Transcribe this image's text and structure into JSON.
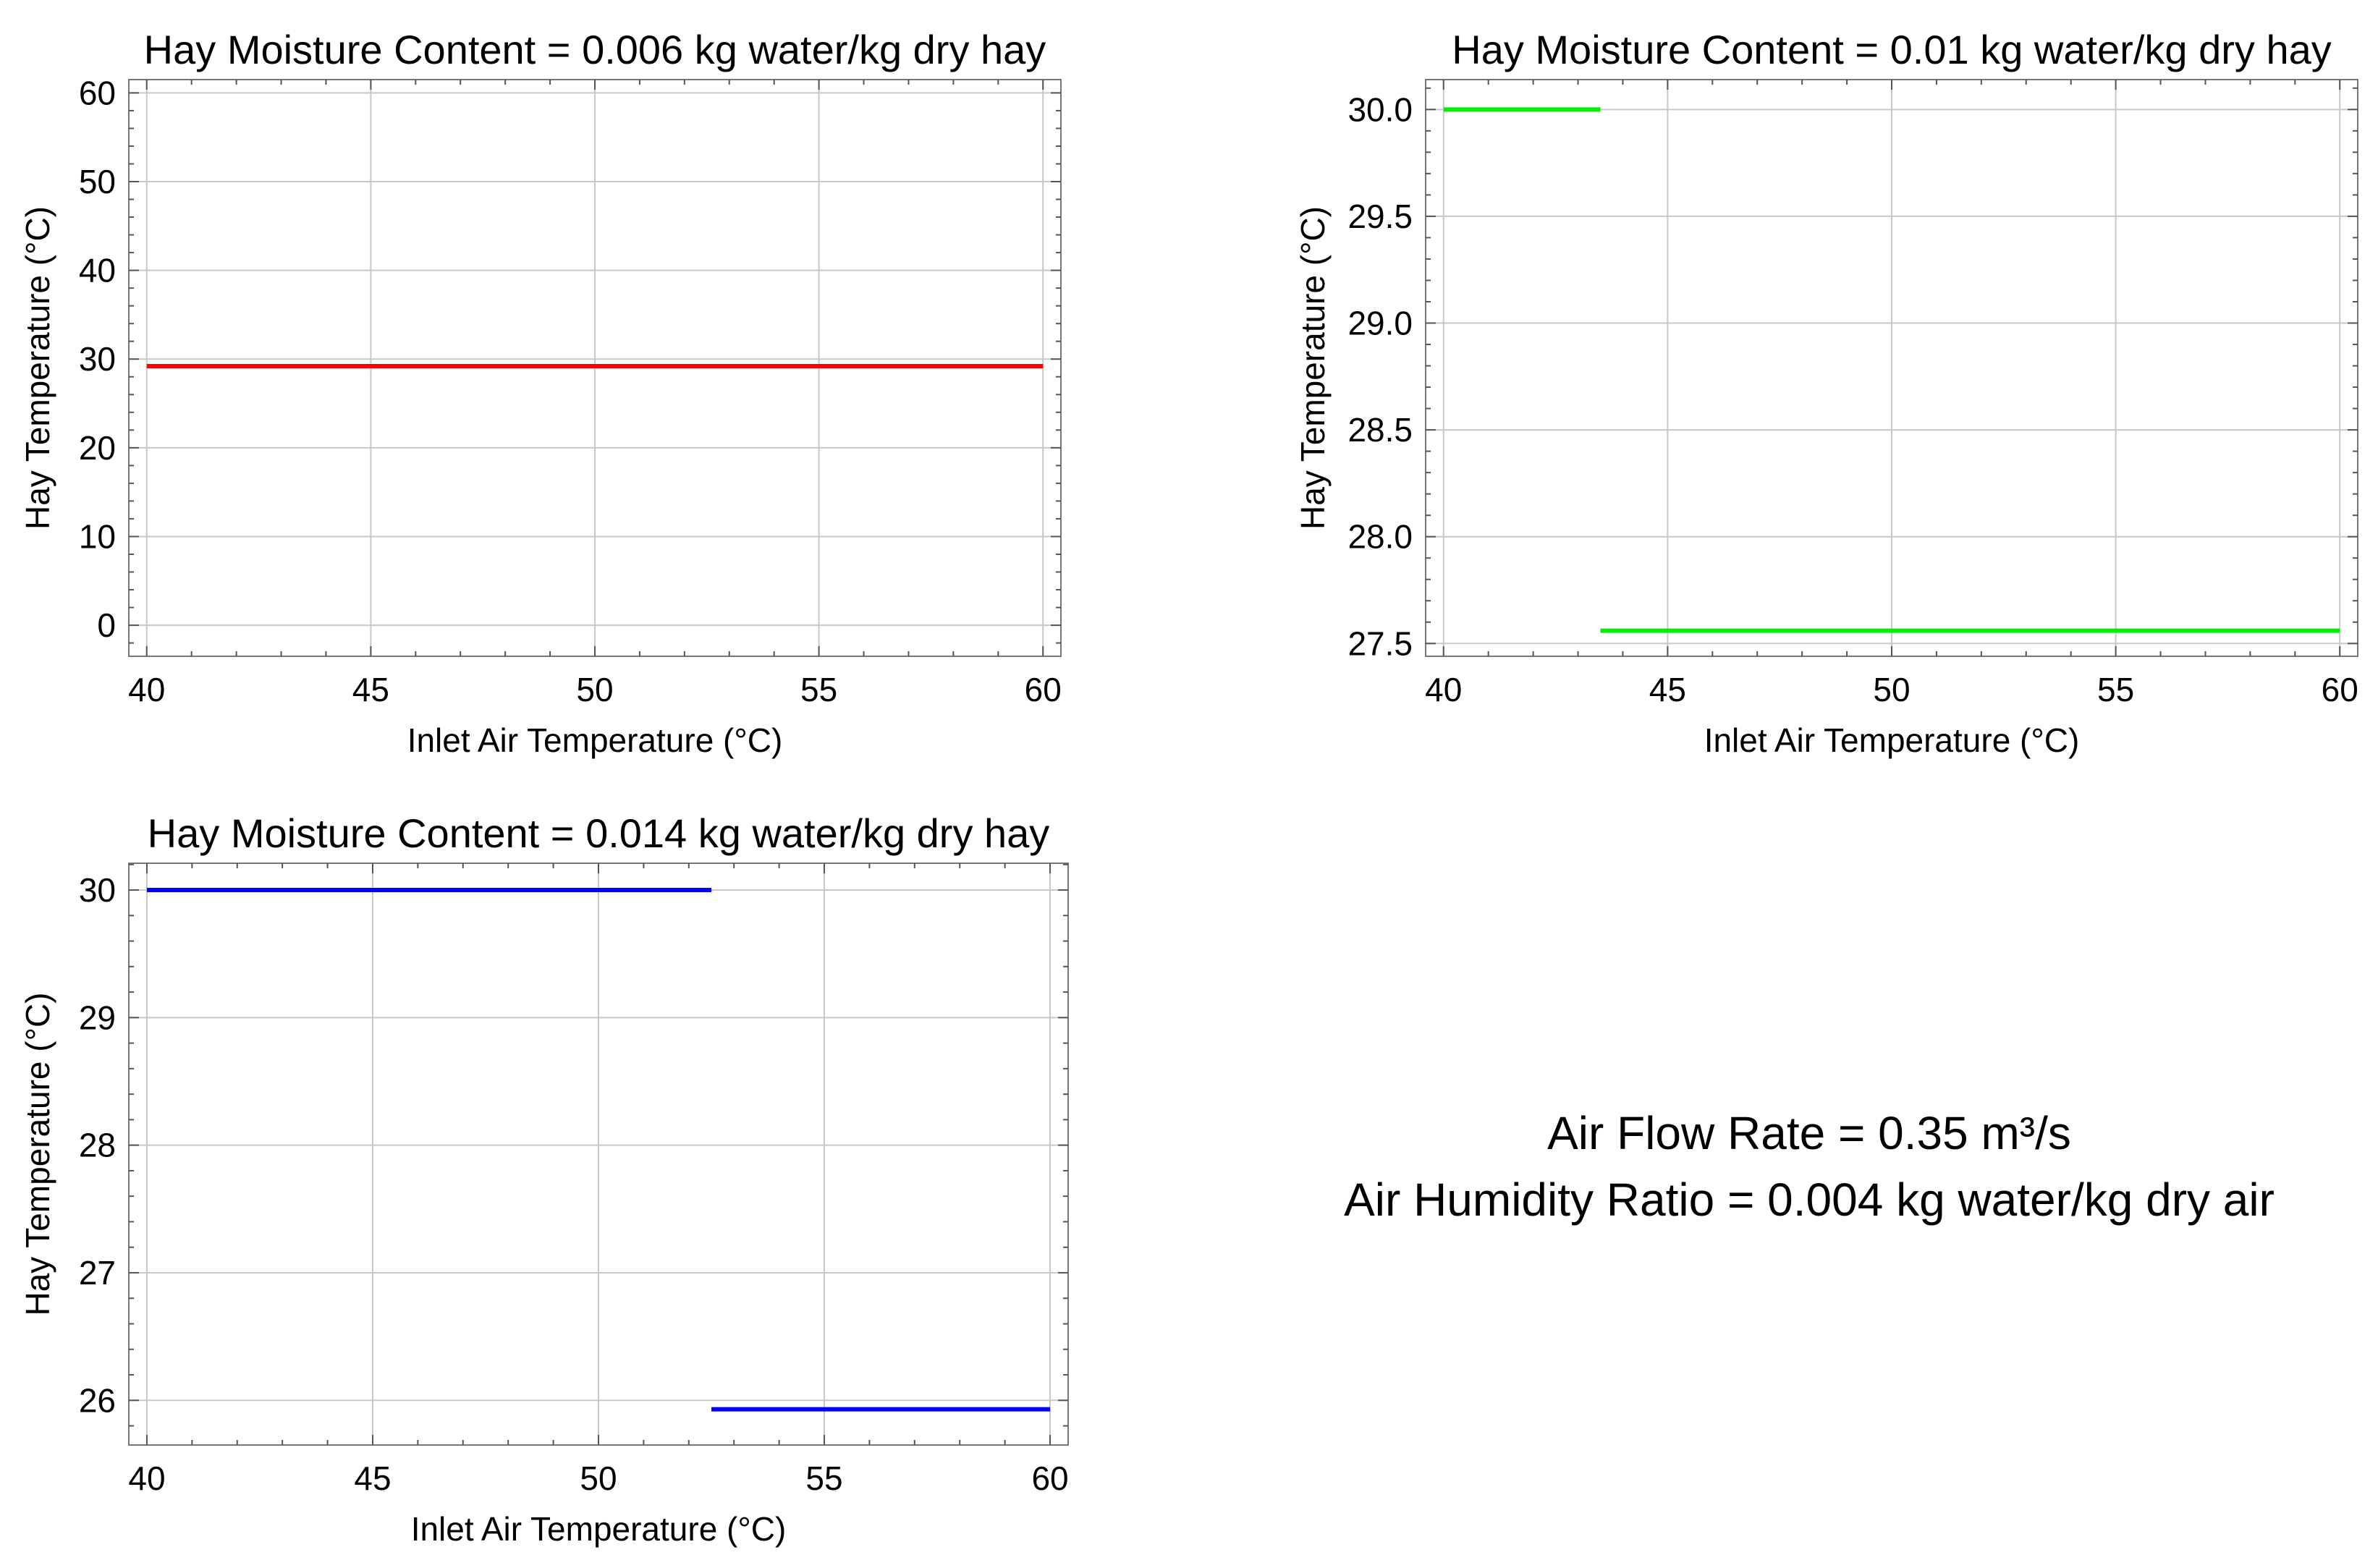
{
  "chart_data": [
    {
      "type": "line",
      "title": "Hay Moisture Content = 0.006 kg water/kg dry hay",
      "xlabel": "Inlet Air Temperature (°C)",
      "ylabel": "Hay Temperature (°C)",
      "xlim": [
        39.6,
        60.4
      ],
      "ylim": [
        -3.5,
        61.5
      ],
      "xticks": [
        40,
        45,
        50,
        55,
        60
      ],
      "xtick_labels": [
        "40",
        "45",
        "50",
        "55",
        "60"
      ],
      "yticks": [
        0,
        10,
        20,
        30,
        40,
        50,
        60
      ],
      "ytick_labels": [
        "0",
        "10",
        "20",
        "30",
        "40",
        "50",
        "60"
      ],
      "grid": true,
      "series": [
        {
          "color": "#ff0000",
          "segments": [
            {
              "x": [
                40,
                60
              ],
              "y": [
                29.2,
                29.2
              ]
            }
          ]
        }
      ]
    },
    {
      "type": "line",
      "title": "Hay Moisture Content = 0.01 kg water/kg dry hay",
      "xlabel": "Inlet Air Temperature (°C)",
      "ylabel": "Hay Temperature (°C)",
      "xlim": [
        39.6,
        60.4
      ],
      "ylim": [
        27.44,
        30.14
      ],
      "xticks": [
        40,
        45,
        50,
        55,
        60
      ],
      "xtick_labels": [
        "40",
        "45",
        "50",
        "55",
        "60"
      ],
      "yticks": [
        27.5,
        28.0,
        28.5,
        29.0,
        29.5,
        30.0
      ],
      "ytick_labels": [
        "27.5",
        "28.0",
        "28.5",
        "29.0",
        "29.5",
        "30.0"
      ],
      "grid": true,
      "series": [
        {
          "color": "#00ee00",
          "segments": [
            {
              "x": [
                40,
                43.5
              ],
              "y": [
                30.0,
                30.0
              ]
            },
            {
              "x": [
                43.5,
                60
              ],
              "y": [
                27.56,
                27.56
              ]
            }
          ]
        }
      ]
    },
    {
      "type": "line",
      "title": "Hay Moisture Content = 0.014 kg water/kg dry hay",
      "xlabel": "Inlet Air Temperature (°C)",
      "ylabel": "Hay Temperature (°C)",
      "xlim": [
        39.6,
        60.4
      ],
      "ylim": [
        25.65,
        30.21
      ],
      "xticks": [
        40,
        45,
        50,
        55,
        60
      ],
      "xtick_labels": [
        "40",
        "45",
        "50",
        "55",
        "60"
      ],
      "yticks": [
        26,
        27,
        28,
        29,
        30
      ],
      "ytick_labels": [
        "26",
        "27",
        "28",
        "29",
        "30"
      ],
      "grid": true,
      "series": [
        {
          "color": "#0000ff",
          "segments": [
            {
              "x": [
                40,
                52.5
              ],
              "y": [
                30.0,
                30.0
              ]
            },
            {
              "x": [
                52.5,
                60
              ],
              "y": [
                25.93,
                25.93
              ]
            }
          ]
        }
      ]
    }
  ],
  "annotation": {
    "line1": "Air Flow Rate = 0.35 m³/s",
    "line2": "Air Humidity Ratio = 0.004 kg water/kg dry air"
  }
}
